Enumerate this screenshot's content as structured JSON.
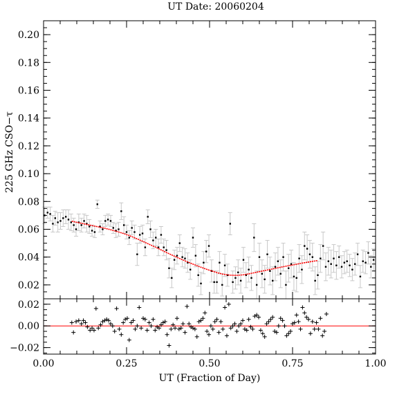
{
  "chart_data": {
    "type": "scatter",
    "title": "UT Date: 20060204",
    "xlabel": "UT (Fraction of Day)",
    "ylabel": "225 GHz CSO−τ",
    "grid": false,
    "legend": "none",
    "colors": {
      "data": "#000000",
      "errorbar": "#c8c8c8",
      "fit": "#ff0000",
      "zero_line": "#ff0000",
      "axes": "#000000"
    },
    "top_panel": {
      "xlim": [
        0.0,
        1.0
      ],
      "ylim": [
        0.01,
        0.21
      ],
      "yticks": [
        "0.02",
        "0.04",
        "0.06",
        "0.08",
        "0.10",
        "0.12",
        "0.14",
        "0.16",
        "0.18",
        "0.20"
      ],
      "points": [
        [
          0.003,
          0.07,
          0.006
        ],
        [
          0.012,
          0.072,
          0.004
        ],
        [
          0.02,
          0.071,
          0.005
        ],
        [
          0.028,
          0.064,
          0.006
        ],
        [
          0.035,
          0.068,
          0.005
        ],
        [
          0.043,
          0.065,
          0.007
        ],
        [
          0.051,
          0.066,
          0.006
        ],
        [
          0.059,
          0.068,
          0.006
        ],
        [
          0.067,
          0.069,
          0.005
        ],
        [
          0.075,
          0.067,
          0.007
        ],
        [
          0.083,
          0.065,
          0.006
        ],
        [
          0.091,
          0.063,
          0.005
        ],
        [
          0.098,
          0.06,
          0.005
        ],
        [
          0.106,
          0.065,
          0.006
        ],
        [
          0.114,
          0.063,
          0.005
        ],
        [
          0.122,
          0.066,
          0.005
        ],
        [
          0.13,
          0.064,
          0.006
        ],
        [
          0.138,
          0.062,
          0.005
        ],
        [
          0.146,
          0.059,
          0.004
        ],
        [
          0.154,
          0.058,
          0.004
        ],
        [
          0.162,
          0.078,
          0.003
        ],
        [
          0.17,
          0.062,
          0.004
        ],
        [
          0.178,
          0.06,
          0.004
        ],
        [
          0.186,
          0.066,
          0.004
        ],
        [
          0.194,
          0.067,
          0.004
        ],
        [
          0.202,
          0.066,
          0.004
        ],
        [
          0.21,
          0.061,
          0.004
        ],
        [
          0.218,
          0.059,
          0.005
        ],
        [
          0.226,
          0.06,
          0.005
        ],
        [
          0.234,
          0.073,
          0.006
        ],
        [
          0.242,
          0.063,
          0.006
        ],
        [
          0.25,
          0.058,
          0.005
        ],
        [
          0.258,
          0.054,
          0.005
        ],
        [
          0.266,
          0.061,
          0.005
        ],
        [
          0.274,
          0.058,
          0.005
        ],
        [
          0.282,
          0.042,
          0.008
        ],
        [
          0.29,
          0.056,
          0.006
        ],
        [
          0.298,
          0.057,
          0.006
        ],
        [
          0.306,
          0.047,
          0.006
        ],
        [
          0.314,
          0.069,
          0.005
        ],
        [
          0.322,
          0.06,
          0.006
        ],
        [
          0.33,
          0.052,
          0.006
        ],
        [
          0.338,
          0.054,
          0.006
        ],
        [
          0.346,
          0.047,
          0.006
        ],
        [
          0.354,
          0.056,
          0.006
        ],
        [
          0.362,
          0.047,
          0.006
        ],
        [
          0.37,
          0.045,
          0.007
        ],
        [
          0.378,
          0.032,
          0.007
        ],
        [
          0.386,
          0.025,
          0.007
        ],
        [
          0.394,
          0.038,
          0.007
        ],
        [
          0.402,
          0.041,
          0.006
        ],
        [
          0.41,
          0.05,
          0.006
        ],
        [
          0.418,
          0.04,
          0.007
        ],
        [
          0.426,
          0.039,
          0.007
        ],
        [
          0.434,
          0.036,
          0.007
        ],
        [
          0.442,
          0.031,
          0.007
        ],
        [
          0.45,
          0.054,
          0.007
        ],
        [
          0.458,
          0.041,
          0.008
        ],
        [
          0.466,
          0.027,
          0.008
        ],
        [
          0.474,
          0.021,
          0.008
        ],
        [
          0.482,
          0.036,
          0.008
        ],
        [
          0.49,
          0.044,
          0.008
        ],
        [
          0.498,
          0.048,
          0.008
        ],
        [
          0.506,
          0.03,
          0.008
        ],
        [
          0.514,
          0.022,
          0.008
        ],
        [
          0.522,
          0.022,
          0.008
        ],
        [
          0.53,
          0.036,
          0.008
        ],
        [
          0.538,
          0.02,
          0.008
        ],
        [
          0.546,
          0.034,
          0.008
        ],
        [
          0.554,
          0.027,
          0.008
        ],
        [
          0.562,
          0.064,
          0.008
        ],
        [
          0.57,
          0.022,
          0.008
        ],
        [
          0.578,
          0.025,
          0.008
        ],
        [
          0.586,
          0.029,
          0.009
        ],
        [
          0.594,
          0.023,
          0.009
        ],
        [
          0.602,
          0.038,
          0.009
        ],
        [
          0.61,
          0.027,
          0.009
        ],
        [
          0.618,
          0.031,
          0.009
        ],
        [
          0.626,
          0.025,
          0.009
        ],
        [
          0.634,
          0.054,
          0.01
        ],
        [
          0.642,
          0.02,
          0.01
        ],
        [
          0.65,
          0.04,
          0.01
        ],
        [
          0.658,
          0.028,
          0.01
        ],
        [
          0.666,
          0.024,
          0.01
        ],
        [
          0.674,
          0.042,
          0.01
        ],
        [
          0.682,
          0.03,
          0.01
        ],
        [
          0.69,
          0.023,
          0.01
        ],
        [
          0.698,
          0.033,
          0.01
        ],
        [
          0.706,
          0.037,
          0.01
        ],
        [
          0.714,
          0.028,
          0.01
        ],
        [
          0.722,
          0.04,
          0.01
        ],
        [
          0.73,
          0.02,
          0.01
        ],
        [
          0.738,
          0.032,
          0.01
        ],
        [
          0.746,
          0.035,
          0.01
        ],
        [
          0.754,
          0.026,
          0.01
        ],
        [
          0.762,
          0.025,
          0.01
        ],
        [
          0.77,
          0.039,
          0.01
        ],
        [
          0.778,
          0.031,
          0.01
        ],
        [
          0.786,
          0.048,
          0.01
        ],
        [
          0.794,
          0.046,
          0.01
        ],
        [
          0.802,
          0.042,
          0.01
        ],
        [
          0.81,
          0.04,
          0.01
        ],
        [
          0.818,
          0.023,
          0.01
        ],
        [
          0.826,
          0.027,
          0.01
        ],
        [
          0.834,
          0.039,
          0.01
        ],
        [
          0.842,
          0.048,
          0.01
        ],
        [
          0.85,
          0.033,
          0.01
        ],
        [
          0.858,
          0.037,
          0.01
        ],
        [
          0.866,
          0.035,
          0.01
        ],
        [
          0.874,
          0.039,
          0.01
        ],
        [
          0.882,
          0.034,
          0.01
        ],
        [
          0.89,
          0.04,
          0.008
        ],
        [
          0.898,
          0.033,
          0.008
        ],
        [
          0.906,
          0.036,
          0.008
        ],
        [
          0.914,
          0.037,
          0.008
        ],
        [
          0.922,
          0.034,
          0.008
        ],
        [
          0.93,
          0.031,
          0.008
        ],
        [
          0.938,
          0.035,
          0.008
        ],
        [
          0.946,
          0.042,
          0.008
        ],
        [
          0.954,
          0.026,
          0.008
        ],
        [
          0.962,
          0.037,
          0.008
        ],
        [
          0.97,
          0.036,
          0.008
        ],
        [
          0.978,
          0.043,
          0.008
        ],
        [
          0.986,
          0.033,
          0.008
        ],
        [
          0.994,
          0.038,
          0.008
        ]
      ],
      "fit": [
        [
          0.085,
          0.0658
        ],
        [
          0.1,
          0.065
        ],
        [
          0.12,
          0.064
        ],
        [
          0.14,
          0.063
        ],
        [
          0.16,
          0.062
        ],
        [
          0.18,
          0.061
        ],
        [
          0.2,
          0.0598
        ],
        [
          0.22,
          0.0585
        ],
        [
          0.24,
          0.057
        ],
        [
          0.26,
          0.0553
        ],
        [
          0.28,
          0.0533
        ],
        [
          0.3,
          0.0512
        ],
        [
          0.32,
          0.049
        ],
        [
          0.34,
          0.0468
        ],
        [
          0.36,
          0.0445
        ],
        [
          0.38,
          0.0422
        ],
        [
          0.4,
          0.04
        ],
        [
          0.42,
          0.0379
        ],
        [
          0.44,
          0.0359
        ],
        [
          0.46,
          0.034
        ],
        [
          0.48,
          0.0322
        ],
        [
          0.5,
          0.0305
        ],
        [
          0.52,
          0.029
        ],
        [
          0.54,
          0.0277
        ],
        [
          0.56,
          0.027
        ],
        [
          0.58,
          0.0268
        ],
        [
          0.6,
          0.0272
        ],
        [
          0.62,
          0.028
        ],
        [
          0.64,
          0.029
        ],
        [
          0.66,
          0.03
        ],
        [
          0.68,
          0.031
        ],
        [
          0.7,
          0.032
        ],
        [
          0.72,
          0.033
        ],
        [
          0.74,
          0.0339
        ],
        [
          0.76,
          0.0348
        ],
        [
          0.78,
          0.0357
        ],
        [
          0.8,
          0.0365
        ],
        [
          0.825,
          0.0375
        ]
      ]
    },
    "bottom_panel": {
      "xlim": [
        0.0,
        1.0
      ],
      "ylim": [
        -0.026,
        0.025
      ],
      "yticks": [
        "−0.02",
        "0.00",
        "0.02"
      ],
      "xticks": [
        "0.00",
        "0.25",
        "0.50",
        "0.75",
        "1.00"
      ],
      "residuals": [
        [
          0.085,
          0.003
        ],
        [
          0.09,
          -0.006
        ],
        [
          0.098,
          0.004
        ],
        [
          0.106,
          0.005
        ],
        [
          0.114,
          0.002
        ],
        [
          0.12,
          0.005
        ],
        [
          0.126,
          0.003
        ],
        [
          0.132,
          -0.001
        ],
        [
          0.14,
          -0.004
        ],
        [
          0.146,
          -0.002
        ],
        [
          0.152,
          -0.004
        ],
        [
          0.158,
          0.016
        ],
        [
          0.165,
          -0.002
        ],
        [
          0.172,
          0.001
        ],
        [
          0.178,
          0.004
        ],
        [
          0.184,
          0.005
        ],
        [
          0.19,
          0.006
        ],
        [
          0.196,
          0.005
        ],
        [
          0.202,
          0.002
        ],
        [
          0.208,
          0.0
        ],
        [
          0.214,
          -0.005
        ],
        [
          0.22,
          0.016
        ],
        [
          0.228,
          -0.003
        ],
        [
          0.234,
          -0.008
        ],
        [
          0.24,
          0.003
        ],
        [
          0.246,
          0.006
        ],
        [
          0.252,
          0.007
        ],
        [
          0.258,
          -0.013
        ],
        [
          0.264,
          0.003
        ],
        [
          0.27,
          0.005
        ],
        [
          0.276,
          -0.003
        ],
        [
          0.282,
          0.0
        ],
        [
          0.288,
          0.017
        ],
        [
          0.294,
          -0.002
        ],
        [
          0.3,
          0.007
        ],
        [
          0.306,
          0.006
        ],
        [
          0.312,
          -0.004
        ],
        [
          0.318,
          0.003
        ],
        [
          0.324,
          0.0
        ],
        [
          0.33,
          0.006
        ],
        [
          0.336,
          -0.004
        ],
        [
          0.342,
          -0.001
        ],
        [
          0.348,
          -0.002
        ],
        [
          0.354,
          0.001
        ],
        [
          0.36,
          0.003
        ],
        [
          0.366,
          0.004
        ],
        [
          0.372,
          -0.008
        ],
        [
          0.378,
          -0.018
        ],
        [
          0.384,
          -0.003
        ],
        [
          0.39,
          0.001
        ],
        [
          0.396,
          -0.002
        ],
        [
          0.402,
          0.007
        ],
        [
          0.408,
          -0.003
        ],
        [
          0.414,
          -0.002
        ],
        [
          0.42,
          0.002
        ],
        [
          0.426,
          -0.006
        ],
        [
          0.432,
          0.018
        ],
        [
          0.438,
          0.002
        ],
        [
          0.444,
          -0.001
        ],
        [
          0.45,
          -0.002
        ],
        [
          0.456,
          -0.003
        ],
        [
          0.462,
          -0.01
        ],
        [
          0.468,
          0.004
        ],
        [
          0.474,
          0.005
        ],
        [
          0.48,
          0.007
        ],
        [
          0.486,
          0.012
        ],
        [
          0.492,
          -0.005
        ],
        [
          0.498,
          -0.008
        ],
        [
          0.504,
          0.0
        ],
        [
          0.51,
          -0.003
        ],
        [
          0.516,
          0.004
        ],
        [
          0.522,
          0.006
        ],
        [
          0.528,
          -0.006
        ],
        [
          0.534,
          0.004
        ],
        [
          0.54,
          -0.003
        ],
        [
          0.546,
          0.017
        ],
        [
          0.552,
          -0.009
        ],
        [
          0.558,
          0.02
        ],
        [
          0.564,
          -0.002
        ],
        [
          0.57,
          0.0
        ],
        [
          0.576,
          0.002
        ],
        [
          0.582,
          -0.005
        ],
        [
          0.588,
          0.0
        ],
        [
          0.594,
          0.002
        ],
        [
          0.6,
          0.005
        ],
        [
          0.606,
          -0.003
        ],
        [
          0.612,
          -0.004
        ],
        [
          0.618,
          0.006
        ],
        [
          0.624,
          -0.001
        ],
        [
          0.63,
          -0.003
        ],
        [
          0.636,
          0.009
        ],
        [
          0.642,
          0.01
        ],
        [
          0.648,
          0.008
        ],
        [
          0.654,
          -0.004
        ],
        [
          0.66,
          -0.007
        ],
        [
          0.666,
          -0.01
        ],
        [
          0.672,
          0.002
        ],
        [
          0.678,
          0.004
        ],
        [
          0.684,
          0.006
        ],
        [
          0.69,
          0.008
        ],
        [
          0.696,
          -0.005
        ],
        [
          0.702,
          -0.006
        ],
        [
          0.708,
          0.0
        ],
        [
          0.714,
          0.007
        ],
        [
          0.72,
          0.005
        ],
        [
          0.726,
          0.0
        ],
        [
          0.732,
          -0.009
        ],
        [
          0.738,
          -0.007
        ],
        [
          0.744,
          -0.005
        ],
        [
          0.75,
          0.002
        ],
        [
          0.756,
          0.003
        ],
        [
          0.762,
          0.01
        ],
        [
          0.768,
          0.004
        ],
        [
          0.774,
          -0.003
        ],
        [
          0.78,
          0.017
        ],
        [
          0.786,
          0.012
        ],
        [
          0.792,
          0.008
        ],
        [
          0.798,
          0.006
        ],
        [
          0.804,
          -0.007
        ],
        [
          0.81,
          0.004
        ],
        [
          0.816,
          -0.003
        ],
        [
          0.822,
          0.003
        ],
        [
          0.828,
          -0.003
        ],
        [
          0.834,
          0.007
        ],
        [
          0.84,
          -0.009
        ],
        [
          0.846,
          -0.005
        ],
        [
          0.852,
          0.011
        ]
      ]
    }
  }
}
